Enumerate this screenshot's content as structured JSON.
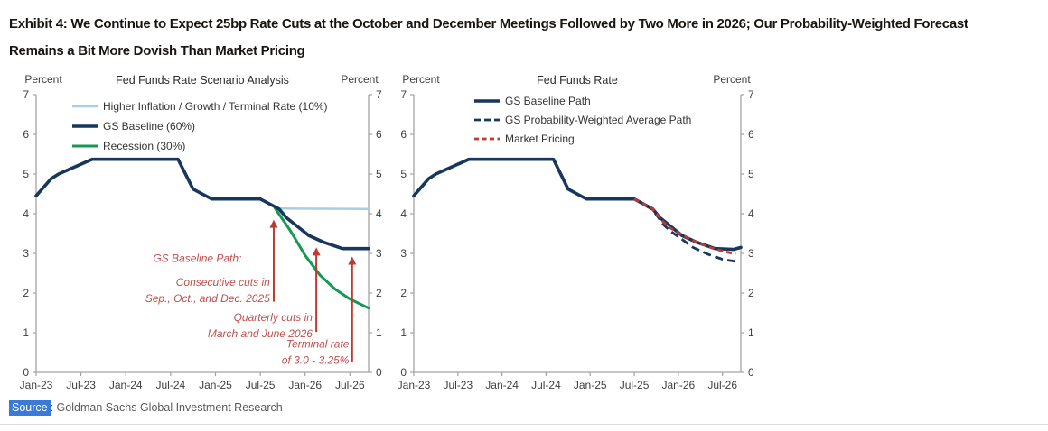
{
  "header": {
    "title": "Exhibit 4: We Continue to Expect 25bp Rate Cuts at the October and December Meetings Followed by Two More in 2026; Our Probability-Weighted Forecast Remains a Bit More Dovish Than Market Pricing"
  },
  "source": {
    "label": "Source",
    "rest": ": Goldman Sachs Global Investment Research"
  },
  "colors": {
    "navy": "#17375e",
    "light_blue": "#a9cde6",
    "green": "#169a52",
    "red": "#c0392f",
    "annotation_red": "#c0504d",
    "axis_gray": "#a3a3a3",
    "tick_text": "#3f3f3f",
    "legend_text": "#333333",
    "title_text": "#2b2b2b",
    "source_highlight": "#3a7ad9"
  },
  "chart_data": [
    {
      "type": "line",
      "title": "Fed Funds Rate Scenario Analysis",
      "ylabel_left": "Percent",
      "ylabel_right": "Percent",
      "ylim": [
        0,
        7
      ],
      "yticks": [
        0,
        1,
        2,
        3,
        4,
        5,
        6,
        7
      ],
      "x_tick_labels": [
        "Jan-23",
        "Jul-23",
        "Jan-24",
        "Jul-24",
        "Jan-25",
        "Jul-25",
        "Jan-26",
        "Jul-26"
      ],
      "x_tick_months": [
        0,
        6,
        12,
        18,
        24,
        30,
        36,
        42
      ],
      "x_max_months": 44.5,
      "grid": false,
      "legend_pos": {
        "x": 72,
        "y": 38,
        "dy": 22
      },
      "legend": [
        {
          "label": "Higher Inflation / Growth / Terminal Rate (10%)",
          "color": "light_blue",
          "dash": null,
          "width": 2.5
        },
        {
          "label": "GS Baseline (60%)",
          "color": "navy",
          "dash": null,
          "width": 3.5
        },
        {
          "label": "Recession (30%)",
          "color": "green",
          "dash": null,
          "width": 3
        }
      ],
      "series": [
        {
          "key": "higher-inflation",
          "name": "Higher Inflation / Growth / Terminal Rate (10%)",
          "color": "light_blue",
          "width": 2.5,
          "dash": null,
          "points": [
            [
              32,
              4.13
            ],
            [
              44.5,
              4.12
            ]
          ]
        },
        {
          "key": "recession",
          "name": "Recession (30%)",
          "color": "green",
          "width": 3,
          "dash": null,
          "points": [
            [
              32,
              4.13
            ],
            [
              34,
              3.58
            ],
            [
              36,
              2.95
            ],
            [
              38,
              2.45
            ],
            [
              40,
              2.1
            ],
            [
              42,
              1.85
            ],
            [
              44.5,
              1.62
            ]
          ]
        },
        {
          "key": "gs-baseline",
          "name": "GS Baseline (60%)",
          "color": "navy",
          "width": 3.6,
          "dash": null,
          "points": [
            [
              0,
              4.45
            ],
            [
              2,
              4.88
            ],
            [
              3,
              5.0
            ],
            [
              7.5,
              5.37
            ],
            [
              19,
              5.37
            ],
            [
              21,
              4.62
            ],
            [
              23.5,
              4.37
            ],
            [
              30,
              4.37
            ],
            [
              32.5,
              4.12
            ],
            [
              33.5,
              3.9
            ],
            [
              35.5,
              3.6
            ],
            [
              36.5,
              3.45
            ],
            [
              38.5,
              3.28
            ],
            [
              41,
              3.12
            ],
            [
              44.5,
              3.12
            ]
          ]
        }
      ],
      "annotations": [
        {
          "lines": [
            "GS Baseline Path:"
          ],
          "anchor_month": 27.5,
          "anchor_value": 2.78
        },
        {
          "lines": [
            "Consecutive cuts in",
            "Sep., Oct., and Dec. 2025"
          ],
          "anchor_month": 31.3,
          "anchor_value": 2.18
        },
        {
          "lines": [
            "Quarterly cuts in",
            "March and June 2026"
          ],
          "anchor_month": 37.0,
          "anchor_value": 1.3
        },
        {
          "lines": [
            "Terminal rate",
            "of 3.0 - 3.25%"
          ],
          "anchor_month": 41.9,
          "anchor_value": 0.62
        }
      ],
      "arrows": [
        {
          "month": 31.8,
          "from": 1.78,
          "to": 3.85
        },
        {
          "month": 37.5,
          "from": 1.02,
          "to": 3.15
        },
        {
          "month": 42.3,
          "from": 0.25,
          "to": 2.92
        }
      ]
    },
    {
      "type": "line",
      "title": "Fed Funds Rate",
      "ylabel_left": "Percent",
      "ylabel_right": "Percent",
      "ylim": [
        0,
        7
      ],
      "yticks": [
        0,
        1,
        2,
        3,
        4,
        5,
        6,
        7
      ],
      "x_tick_labels": [
        "Jan-23",
        "Jul-23",
        "Jan-24",
        "Jul-24",
        "Jan-25",
        "Jul-25",
        "Jan-26",
        "Jul-26"
      ],
      "x_tick_months": [
        0,
        6,
        12,
        18,
        24,
        30,
        36,
        42
      ],
      "x_max_months": 44.5,
      "grid": false,
      "legend_pos": {
        "x": 87,
        "y": 32,
        "dy": 21
      },
      "legend": [
        {
          "label": "GS Baseline Path",
          "color": "navy",
          "dash": null,
          "width": 3.5
        },
        {
          "label": "GS Probability-Weighted Average Path",
          "color": "navy",
          "dash": "7 4",
          "width": 2.8
        },
        {
          "label": "Market Pricing",
          "color": "red",
          "dash": "5 3.5",
          "width": 2.8
        }
      ],
      "series": [
        {
          "key": "gs-baseline-path",
          "name": "GS Baseline Path",
          "color": "navy",
          "width": 3.6,
          "dash": null,
          "points": [
            [
              0,
              4.45
            ],
            [
              2,
              4.88
            ],
            [
              3,
              5.0
            ],
            [
              7.5,
              5.37
            ],
            [
              19,
              5.37
            ],
            [
              21,
              4.62
            ],
            [
              23.5,
              4.37
            ],
            [
              30,
              4.37
            ],
            [
              32.5,
              4.12
            ],
            [
              33.5,
              3.9
            ],
            [
              35.5,
              3.6
            ],
            [
              36.5,
              3.45
            ],
            [
              38.5,
              3.28
            ],
            [
              41,
              3.12
            ],
            [
              43.5,
              3.1
            ],
            [
              44.5,
              3.15
            ]
          ]
        },
        {
          "key": "gs-probability-weighted",
          "name": "GS Probability-Weighted Average Path",
          "color": "navy",
          "width": 2.8,
          "dash": "9 5",
          "points": [
            [
              30,
              4.37
            ],
            [
              32.5,
              4.1
            ],
            [
              34,
              3.72
            ],
            [
              35,
              3.55
            ],
            [
              36,
              3.42
            ],
            [
              38,
              3.15
            ],
            [
              40,
              2.98
            ],
            [
              42,
              2.85
            ],
            [
              44,
              2.79
            ]
          ]
        },
        {
          "key": "market-pricing",
          "name": "Market Pricing",
          "color": "red",
          "width": 2.8,
          "dash": "6 4",
          "points": [
            [
              30,
              4.37
            ],
            [
              32.5,
              4.12
            ],
            [
              34,
              3.78
            ],
            [
              35,
              3.63
            ],
            [
              36,
              3.52
            ],
            [
              38,
              3.32
            ],
            [
              40,
              3.17
            ],
            [
              42,
              3.06
            ],
            [
              43.8,
              2.98
            ]
          ]
        }
      ],
      "annotations": [],
      "arrows": []
    }
  ]
}
